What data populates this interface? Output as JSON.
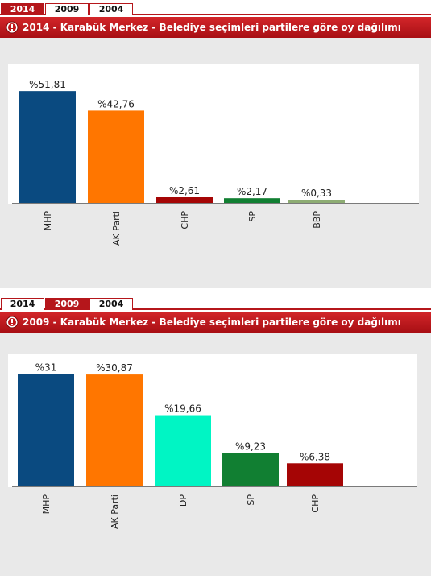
{
  "panels": [
    {
      "tabs": [
        {
          "label": "2014",
          "active": true
        },
        {
          "label": "2009",
          "active": false
        },
        {
          "label": "2004",
          "active": false
        }
      ],
      "title": "2014 - Karabük Merkez - Belediye seçimleri partilere göre oy dağılımı",
      "icon": "info-icon"
    },
    {
      "tabs": [
        {
          "label": "2014",
          "active": false
        },
        {
          "label": "2009",
          "active": true
        },
        {
          "label": "2004",
          "active": false
        }
      ],
      "title": "2009 - Karabük Merkez - Belediye seçimleri partilere göre oy dağılımı",
      "icon": "info-icon"
    }
  ],
  "colors": {
    "tab_red": "#b5161b",
    "chart_background": "#e9e9e9",
    "MHP": "#0a4a80",
    "AK Parti": "#ff7600",
    "CHP": "#a50505",
    "SP": "#117f32",
    "BBP": "#8dac73",
    "DP": "#00f5c4"
  },
  "chart_data": [
    {
      "type": "bar",
      "categories": [
        "MHP",
        "AK Parti",
        "CHP",
        "SP",
        "BBP"
      ],
      "values": [
        51.81,
        42.76,
        2.61,
        2.17,
        0.33
      ],
      "value_labels": [
        "%51,81",
        "%42,76",
        "%2,61",
        "%2,17",
        "%0,33"
      ],
      "colors": [
        "#0a4a80",
        "#ff7600",
        "#a50505",
        "#117f32",
        "#8dac73"
      ],
      "title": "2014 - Karabük Merkez - Belediye seçimleri partilere göre oy dağılımı",
      "xlabel": "",
      "ylabel": "",
      "ylim": [
        0,
        55
      ],
      "grid": false
    },
    {
      "type": "bar",
      "categories": [
        "MHP",
        "AK Parti",
        "DP",
        "SP",
        "CHP"
      ],
      "values": [
        31,
        30.87,
        19.66,
        9.23,
        6.38
      ],
      "value_labels": [
        "%31",
        "%30,87",
        "%19,66",
        "%9,23",
        "%6,38"
      ],
      "colors": [
        "#0a4a80",
        "#ff7600",
        "#00f5c4",
        "#117f32",
        "#a50505"
      ],
      "title": "2009 - Karabük Merkez - Belediye seçimleri partilere göre oy dağılımı",
      "xlabel": "",
      "ylabel": "",
      "ylim": [
        0,
        35
      ],
      "grid": false
    }
  ]
}
